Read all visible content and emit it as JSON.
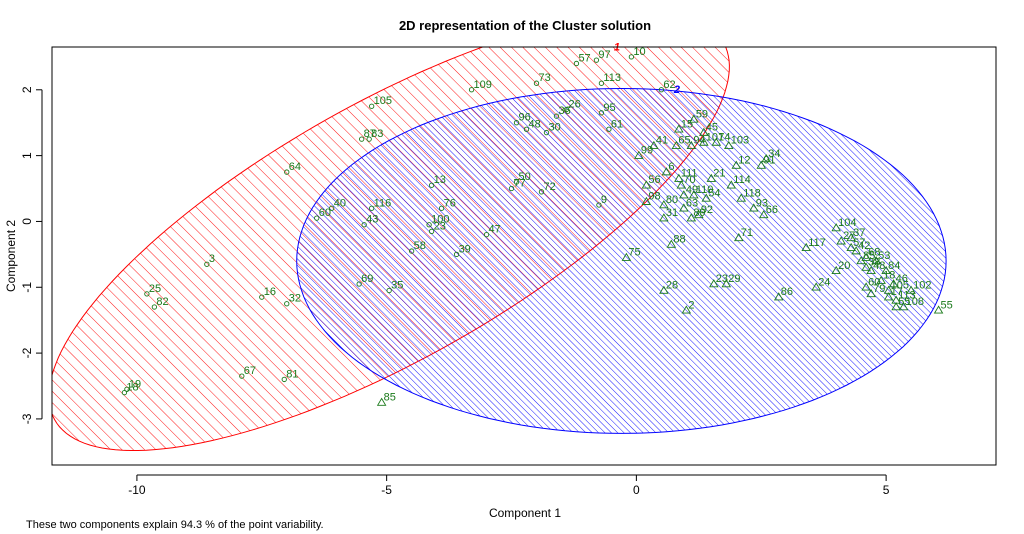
{
  "chart_data": {
    "type": "scatter",
    "title": "2D representation of the Cluster solution",
    "xlabel": "Component 1",
    "ylabel": "Component 2",
    "subtitle": "These two components explain 94.3 % of the point variability.",
    "xlim": [
      -11.7,
      7.2
    ],
    "ylim": [
      -3.7,
      2.65
    ],
    "xticks": [
      -10,
      -5,
      0,
      5
    ],
    "yticks": [
      -3,
      -2,
      -1,
      0,
      1,
      2
    ],
    "grid": false,
    "clusters": [
      {
        "label": "1",
        "color": "#ff0000",
        "marker": "circle",
        "ellipse": {
          "center": [
            -4.95,
            -0.15
          ],
          "semi_axes": [
            7.3,
            2.05
          ],
          "angle_deg": 22.0
        },
        "label_pos": [
          -0.45,
          2.6
        ],
        "points": [
          [
            -0.1,
            2.5,
            "10"
          ],
          [
            -0.8,
            2.45,
            "97"
          ],
          [
            -1.2,
            2.4,
            "57"
          ],
          [
            -2.0,
            2.1,
            "73"
          ],
          [
            -3.3,
            2.0,
            "109"
          ],
          [
            -5.3,
            1.75,
            "105"
          ],
          [
            -0.7,
            2.1,
            "113"
          ],
          [
            0.5,
            2.0,
            "62"
          ],
          [
            -1.4,
            1.7,
            "26"
          ],
          [
            -1.6,
            1.6,
            "36"
          ],
          [
            -0.7,
            1.65,
            "95"
          ],
          [
            -2.4,
            1.5,
            "96"
          ],
          [
            -2.2,
            1.4,
            "48"
          ],
          [
            -1.8,
            1.35,
            "30"
          ],
          [
            -5.5,
            1.25,
            "87"
          ],
          [
            -5.35,
            1.25,
            "83"
          ],
          [
            -0.55,
            1.4,
            "61"
          ],
          [
            -7.0,
            0.75,
            "64"
          ],
          [
            -4.1,
            0.55,
            "13"
          ],
          [
            -2.4,
            0.6,
            "50"
          ],
          [
            -1.9,
            0.45,
            "72"
          ],
          [
            -2.5,
            0.5,
            "77"
          ],
          [
            -0.75,
            0.25,
            "9"
          ],
          [
            -3.9,
            0.2,
            "76"
          ],
          [
            -5.3,
            0.2,
            "116"
          ],
          [
            -6.1,
            0.2,
            "40"
          ],
          [
            -6.4,
            0.05,
            "60"
          ],
          [
            -5.45,
            -0.05,
            "43"
          ],
          [
            -4.15,
            -0.05,
            "100"
          ],
          [
            -4.1,
            -0.15,
            "23"
          ],
          [
            -3.0,
            -0.2,
            "47"
          ],
          [
            -4.5,
            -0.45,
            "58"
          ],
          [
            -3.6,
            -0.5,
            "39"
          ],
          [
            -8.6,
            -0.65,
            "3"
          ],
          [
            -5.55,
            -0.95,
            "69"
          ],
          [
            -4.95,
            -1.05,
            "35"
          ],
          [
            -9.8,
            -1.1,
            "25"
          ],
          [
            -9.65,
            -1.3,
            "82"
          ],
          [
            -7.5,
            -1.15,
            "16"
          ],
          [
            -7.0,
            -1.25,
            "32"
          ],
          [
            -7.9,
            -2.35,
            "67"
          ],
          [
            -7.05,
            -2.4,
            "81"
          ],
          [
            -10.2,
            -2.55,
            "19"
          ],
          [
            -10.25,
            -2.6,
            "18"
          ]
        ]
      },
      {
        "label": "2",
        "color": "#0000ff",
        "marker": "triangle",
        "ellipse": {
          "center": [
            -0.3,
            -0.6
          ],
          "semi_axes": [
            6.5,
            2.62
          ],
          "angle_deg": 0.0
        },
        "label_pos": [
          0.75,
          1.95
        ],
        "points": [
          [
            1.15,
            1.55,
            "59"
          ],
          [
            0.85,
            1.4,
            "15"
          ],
          [
            1.35,
            1.35,
            "45"
          ],
          [
            1.6,
            1.2,
            "74"
          ],
          [
            1.85,
            1.15,
            "103"
          ],
          [
            0.35,
            1.15,
            "41"
          ],
          [
            0.8,
            1.15,
            "65"
          ],
          [
            1.1,
            1.15,
            "94"
          ],
          [
            1.35,
            1.2,
            "101"
          ],
          [
            0.05,
            1.0,
            "99"
          ],
          [
            2.0,
            0.85,
            "12"
          ],
          [
            2.5,
            0.85,
            "91"
          ],
          [
            2.6,
            0.95,
            "34"
          ],
          [
            0.6,
            0.75,
            "6"
          ],
          [
            0.85,
            0.65,
            "111"
          ],
          [
            0.9,
            0.55,
            "70"
          ],
          [
            0.2,
            0.55,
            "56"
          ],
          [
            1.5,
            0.65,
            "21"
          ],
          [
            1.9,
            0.55,
            "114"
          ],
          [
            1.15,
            0.4,
            "110"
          ],
          [
            1.4,
            0.35,
            "54"
          ],
          [
            2.1,
            0.35,
            "118"
          ],
          [
            0.95,
            0.4,
            "49"
          ],
          [
            0.2,
            0.3,
            "98"
          ],
          [
            0.55,
            0.25,
            "80"
          ],
          [
            0.95,
            0.2,
            "63"
          ],
          [
            2.35,
            0.2,
            "93"
          ],
          [
            2.55,
            0.1,
            "66"
          ],
          [
            0.55,
            0.05,
            "31"
          ],
          [
            1.1,
            0.05,
            "89"
          ],
          [
            1.25,
            0.1,
            "92"
          ],
          [
            2.05,
            -0.25,
            "71"
          ],
          [
            0.7,
            -0.35,
            "88"
          ],
          [
            -0.2,
            -0.55,
            "75"
          ],
          [
            3.4,
            -0.4,
            "117"
          ],
          [
            4.0,
            -0.1,
            "104"
          ],
          [
            4.1,
            -0.3,
            "27"
          ],
          [
            4.3,
            -0.25,
            "37"
          ],
          [
            4.3,
            -0.4,
            "57"
          ],
          [
            4.4,
            -0.45,
            "42"
          ],
          [
            4.6,
            -0.55,
            "68"
          ],
          [
            4.8,
            -0.6,
            "53"
          ],
          [
            4.5,
            -0.6,
            "85"
          ],
          [
            4.6,
            -0.7,
            "38"
          ],
          [
            4.0,
            -0.75,
            "20"
          ],
          [
            4.7,
            -0.75,
            "48"
          ],
          [
            5.0,
            -0.75,
            "84"
          ],
          [
            4.9,
            -0.9,
            "18"
          ],
          [
            5.15,
            -0.95,
            "46"
          ],
          [
            4.6,
            -1.0,
            "60"
          ],
          [
            5.05,
            -1.05,
            "105"
          ],
          [
            4.7,
            -1.1,
            "79"
          ],
          [
            3.6,
            -1.0,
            "24"
          ],
          [
            5.5,
            -1.05,
            "102"
          ],
          [
            5.05,
            -1.15,
            "17"
          ],
          [
            5.2,
            -1.2,
            "113"
          ],
          [
            5.2,
            -1.3,
            "55"
          ],
          [
            5.35,
            -1.3,
            "108"
          ],
          [
            6.05,
            -1.35,
            "55"
          ],
          [
            1.55,
            -0.95,
            "23"
          ],
          [
            1.8,
            -0.95,
            "29"
          ],
          [
            0.55,
            -1.05,
            "28"
          ],
          [
            2.85,
            -1.15,
            "86"
          ],
          [
            1.0,
            -1.35,
            "2"
          ],
          [
            -5.1,
            -2.75,
            "85"
          ]
        ]
      }
    ]
  }
}
